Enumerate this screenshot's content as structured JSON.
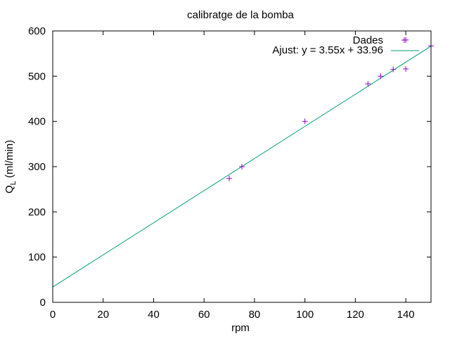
{
  "chart_data": {
    "type": "scatter",
    "title": "calibratge de la bomba",
    "xlabel": "rpm",
    "ylabel_main": "Q",
    "ylabel_sub": "L",
    "ylabel_rest": " (ml/min)",
    "xlim": [
      0,
      150
    ],
    "ylim": [
      0,
      600
    ],
    "xticks": [
      0,
      20,
      40,
      60,
      80,
      100,
      120,
      140
    ],
    "yticks": [
      0,
      100,
      200,
      300,
      400,
      500,
      600
    ],
    "grid": false,
    "legend_position": "top-right",
    "series": [
      {
        "name": "Dades",
        "kind": "points",
        "marker": "plus",
        "color": "#9400d3",
        "x": [
          70,
          75,
          100,
          125,
          130,
          135,
          140,
          140,
          150
        ],
        "y": [
          274,
          300,
          400,
          483,
          500,
          515,
          516,
          580,
          567
        ]
      },
      {
        "name": "Ajust: y = 3.55x + 33.96",
        "kind": "line",
        "color": "#009e73",
        "slope": 3.55,
        "intercept": 33.96
      }
    ]
  }
}
